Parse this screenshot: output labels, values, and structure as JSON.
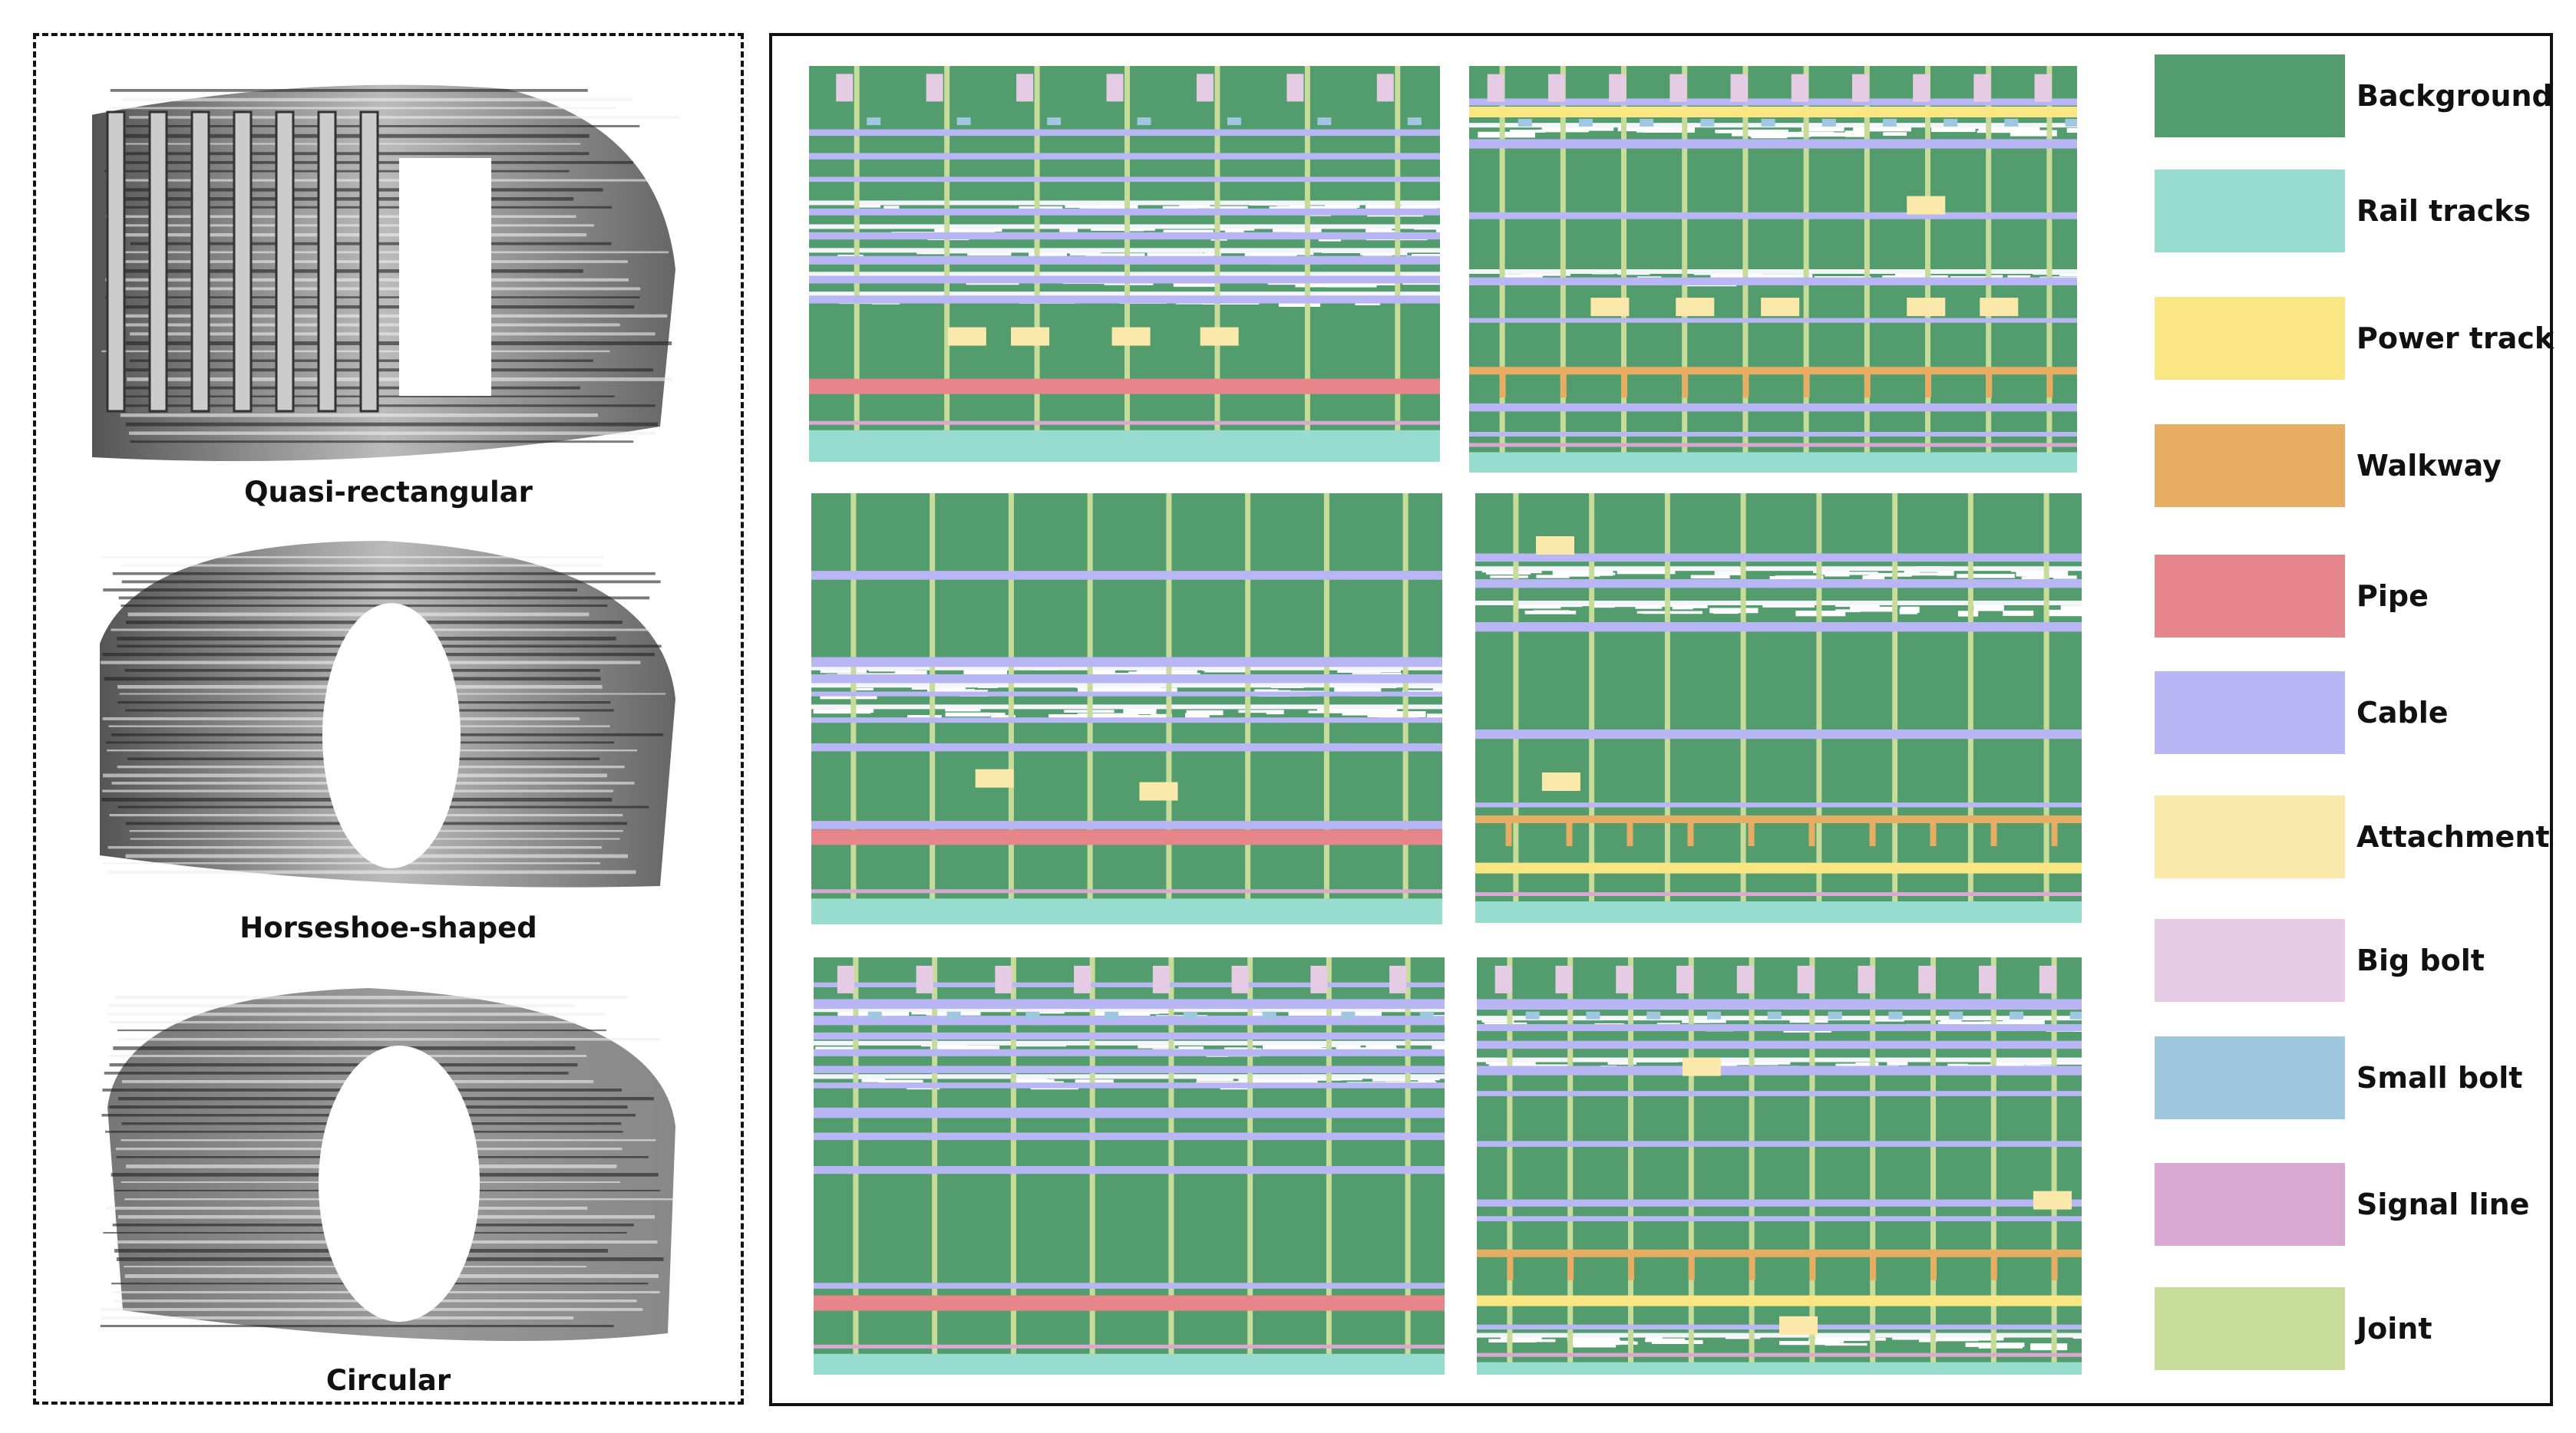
{
  "left_panel": {
    "tunnels": [
      {
        "caption": "Quasi-rectangular",
        "shape": "quasi-rectangular"
      },
      {
        "caption": "Horseshoe-shaped",
        "shape": "horseshoe"
      },
      {
        "caption": "Circular",
        "shape": "circular"
      }
    ]
  },
  "legend": [
    {
      "label": "Background",
      "color": "#529c6e"
    },
    {
      "label": "Rail tracks",
      "color": "#97dccf"
    },
    {
      "label": "Power track",
      "color": "#fae783"
    },
    {
      "label": "Walkway",
      "color": "#e7ad62"
    },
    {
      "label": "Pipe",
      "color": "#e6868a"
    },
    {
      "label": "Cable",
      "color": "#b9b6f5"
    },
    {
      "label": "Attachment",
      "color": "#fbe8ab"
    },
    {
      "label": "Big bolt",
      "color": "#e6cbe4"
    },
    {
      "label": "Small bolt",
      "color": "#9fc7df"
    },
    {
      "label": "Signal line",
      "color": "#d9a8d2"
    },
    {
      "label": "Joint",
      "color": "#c6dc98"
    }
  ]
}
